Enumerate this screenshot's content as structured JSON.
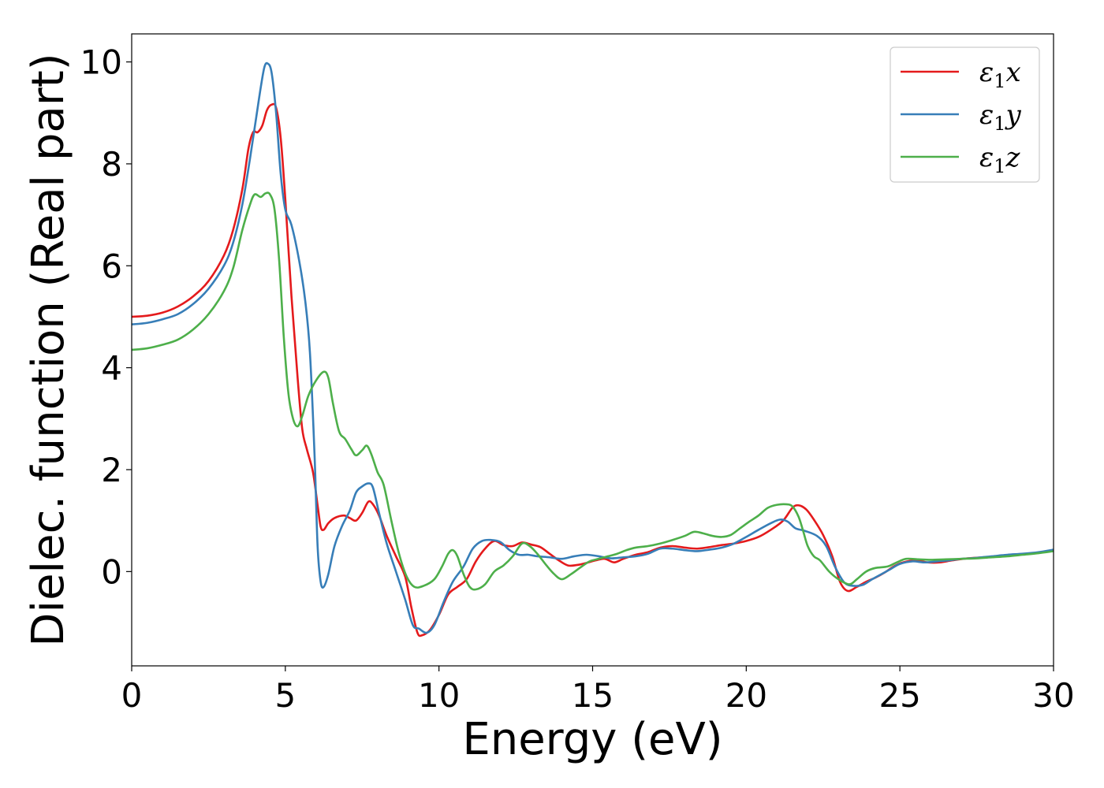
{
  "chart_data": {
    "type": "line",
    "xlabel": "Energy (eV)",
    "ylabel": "Dielec. function (Real part)",
    "xlim": [
      0,
      30
    ],
    "ylim": [
      -1.85,
      10.55
    ],
    "xticks": [
      0,
      5,
      10,
      15,
      20,
      25,
      30
    ],
    "yticks": [
      0,
      2,
      4,
      6,
      8,
      10
    ],
    "xtick_labels": [
      "0",
      "5",
      "10",
      "15",
      "20",
      "25",
      "30"
    ],
    "ytick_labels": [
      "0",
      "2",
      "4",
      "6",
      "8",
      "10"
    ],
    "grid": false,
    "legend_position": "top-right",
    "series": [
      {
        "name": "ε₁x",
        "legend_base": "ε",
        "legend_sub": "1",
        "legend_var": "x",
        "color": "#e41a1c",
        "points": [
          [
            0,
            5.0
          ],
          [
            0.5,
            5.02
          ],
          [
            1,
            5.08
          ],
          [
            1.5,
            5.2
          ],
          [
            2,
            5.4
          ],
          [
            2.5,
            5.7
          ],
          [
            3,
            6.2
          ],
          [
            3.3,
            6.7
          ],
          [
            3.6,
            7.5
          ],
          [
            3.8,
            8.3
          ],
          [
            3.95,
            8.62
          ],
          [
            4.1,
            8.62
          ],
          [
            4.25,
            8.75
          ],
          [
            4.4,
            9.05
          ],
          [
            4.55,
            9.16
          ],
          [
            4.7,
            9.1
          ],
          [
            4.85,
            8.5
          ],
          [
            5.0,
            7.3
          ],
          [
            5.2,
            5.4
          ],
          [
            5.4,
            3.8
          ],
          [
            5.55,
            2.8
          ],
          [
            5.7,
            2.4
          ],
          [
            5.9,
            1.95
          ],
          [
            6.05,
            1.3
          ],
          [
            6.15,
            0.88
          ],
          [
            6.25,
            0.82
          ],
          [
            6.4,
            0.95
          ],
          [
            6.6,
            1.05
          ],
          [
            6.9,
            1.1
          ],
          [
            7.1,
            1.05
          ],
          [
            7.3,
            1.0
          ],
          [
            7.5,
            1.15
          ],
          [
            7.7,
            1.37
          ],
          [
            7.85,
            1.32
          ],
          [
            8.05,
            1.1
          ],
          [
            8.3,
            0.7
          ],
          [
            8.6,
            0.3
          ],
          [
            8.9,
            -0.1
          ],
          [
            9.1,
            -0.7
          ],
          [
            9.3,
            -1.2
          ],
          [
            9.45,
            -1.25
          ],
          [
            9.7,
            -1.15
          ],
          [
            10.0,
            -0.85
          ],
          [
            10.3,
            -0.45
          ],
          [
            10.6,
            -0.3
          ],
          [
            10.9,
            -0.15
          ],
          [
            11.2,
            0.2
          ],
          [
            11.5,
            0.45
          ],
          [
            11.8,
            0.6
          ],
          [
            12.1,
            0.52
          ],
          [
            12.4,
            0.5
          ],
          [
            12.7,
            0.57
          ],
          [
            13.0,
            0.53
          ],
          [
            13.3,
            0.48
          ],
          [
            13.6,
            0.35
          ],
          [
            13.9,
            0.22
          ],
          [
            14.2,
            0.12
          ],
          [
            14.5,
            0.13
          ],
          [
            14.8,
            0.17
          ],
          [
            15.1,
            0.22
          ],
          [
            15.4,
            0.25
          ],
          [
            15.7,
            0.18
          ],
          [
            16.0,
            0.25
          ],
          [
            16.4,
            0.33
          ],
          [
            16.8,
            0.38
          ],
          [
            17.2,
            0.47
          ],
          [
            17.6,
            0.5
          ],
          [
            18.0,
            0.47
          ],
          [
            18.4,
            0.45
          ],
          [
            18.8,
            0.48
          ],
          [
            19.2,
            0.52
          ],
          [
            19.6,
            0.55
          ],
          [
            20.0,
            0.6
          ],
          [
            20.4,
            0.68
          ],
          [
            20.8,
            0.82
          ],
          [
            21.2,
            1.0
          ],
          [
            21.5,
            1.25
          ],
          [
            21.7,
            1.3
          ],
          [
            21.95,
            1.22
          ],
          [
            22.2,
            1.02
          ],
          [
            22.5,
            0.72
          ],
          [
            22.8,
            0.3
          ],
          [
            23.05,
            -0.2
          ],
          [
            23.3,
            -0.38
          ],
          [
            23.6,
            -0.3
          ],
          [
            23.9,
            -0.2
          ],
          [
            24.2,
            -0.12
          ],
          [
            24.5,
            -0.02
          ],
          [
            24.8,
            0.1
          ],
          [
            25.1,
            0.18
          ],
          [
            25.5,
            0.22
          ],
          [
            25.9,
            0.18
          ],
          [
            26.3,
            0.18
          ],
          [
            26.7,
            0.22
          ],
          [
            27.2,
            0.26
          ],
          [
            27.7,
            0.28
          ],
          [
            28.2,
            0.3
          ],
          [
            28.8,
            0.33
          ],
          [
            29.4,
            0.36
          ],
          [
            30.0,
            0.42
          ]
        ]
      },
      {
        "name": "ε₁y",
        "legend_base": "ε",
        "legend_sub": "1",
        "legend_var": "y",
        "color": "#377eb8",
        "points": [
          [
            0,
            4.85
          ],
          [
            0.5,
            4.88
          ],
          [
            1,
            4.95
          ],
          [
            1.5,
            5.05
          ],
          [
            2,
            5.25
          ],
          [
            2.5,
            5.55
          ],
          [
            3,
            6.0
          ],
          [
            3.3,
            6.45
          ],
          [
            3.6,
            7.2
          ],
          [
            3.85,
            8.1
          ],
          [
            4.05,
            8.9
          ],
          [
            4.2,
            9.5
          ],
          [
            4.32,
            9.9
          ],
          [
            4.42,
            9.97
          ],
          [
            4.55,
            9.8
          ],
          [
            4.7,
            9.0
          ],
          [
            4.85,
            7.8
          ],
          [
            5.0,
            7.1
          ],
          [
            5.2,
            6.8
          ],
          [
            5.45,
            6.1
          ],
          [
            5.65,
            5.3
          ],
          [
            5.8,
            4.3
          ],
          [
            5.95,
            2.3
          ],
          [
            6.05,
            0.5
          ],
          [
            6.15,
            -0.2
          ],
          [
            6.25,
            -0.3
          ],
          [
            6.4,
            -0.05
          ],
          [
            6.6,
            0.5
          ],
          [
            6.85,
            0.9
          ],
          [
            7.1,
            1.2
          ],
          [
            7.3,
            1.55
          ],
          [
            7.5,
            1.67
          ],
          [
            7.7,
            1.73
          ],
          [
            7.85,
            1.65
          ],
          [
            8.05,
            1.15
          ],
          [
            8.3,
            0.55
          ],
          [
            8.6,
            0.0
          ],
          [
            8.9,
            -0.55
          ],
          [
            9.15,
            -1.05
          ],
          [
            9.35,
            -1.12
          ],
          [
            9.6,
            -1.2
          ],
          [
            9.85,
            -1.05
          ],
          [
            10.15,
            -0.6
          ],
          [
            10.45,
            -0.2
          ],
          [
            10.8,
            0.1
          ],
          [
            11.1,
            0.45
          ],
          [
            11.4,
            0.6
          ],
          [
            11.7,
            0.62
          ],
          [
            12.0,
            0.58
          ],
          [
            12.3,
            0.42
          ],
          [
            12.6,
            0.33
          ],
          [
            12.9,
            0.33
          ],
          [
            13.2,
            0.3
          ],
          [
            13.6,
            0.28
          ],
          [
            14.0,
            0.25
          ],
          [
            14.4,
            0.3
          ],
          [
            14.8,
            0.33
          ],
          [
            15.2,
            0.3
          ],
          [
            15.6,
            0.26
          ],
          [
            16.0,
            0.28
          ],
          [
            16.4,
            0.3
          ],
          [
            16.8,
            0.35
          ],
          [
            17.2,
            0.45
          ],
          [
            17.6,
            0.45
          ],
          [
            18.0,
            0.42
          ],
          [
            18.4,
            0.4
          ],
          [
            18.8,
            0.43
          ],
          [
            19.2,
            0.47
          ],
          [
            19.6,
            0.55
          ],
          [
            20.0,
            0.68
          ],
          [
            20.4,
            0.82
          ],
          [
            20.8,
            0.95
          ],
          [
            21.1,
            1.02
          ],
          [
            21.35,
            0.98
          ],
          [
            21.6,
            0.85
          ],
          [
            21.9,
            0.8
          ],
          [
            22.3,
            0.7
          ],
          [
            22.6,
            0.5
          ],
          [
            22.9,
            0.08
          ],
          [
            23.2,
            -0.22
          ],
          [
            23.5,
            -0.28
          ],
          [
            23.8,
            -0.26
          ],
          [
            24.1,
            -0.15
          ],
          [
            24.4,
            -0.05
          ],
          [
            24.7,
            0.05
          ],
          [
            25.0,
            0.15
          ],
          [
            25.4,
            0.2
          ],
          [
            25.8,
            0.18
          ],
          [
            26.2,
            0.2
          ],
          [
            26.6,
            0.22
          ],
          [
            27.0,
            0.25
          ],
          [
            27.5,
            0.27
          ],
          [
            28.0,
            0.3
          ],
          [
            28.5,
            0.33
          ],
          [
            29.0,
            0.35
          ],
          [
            29.5,
            0.38
          ],
          [
            30.0,
            0.43
          ]
        ]
      },
      {
        "name": "ε₁z",
        "legend_base": "ε",
        "legend_sub": "1",
        "legend_var": "z",
        "color": "#4daf4a",
        "points": [
          [
            0,
            4.35
          ],
          [
            0.5,
            4.38
          ],
          [
            1,
            4.45
          ],
          [
            1.5,
            4.55
          ],
          [
            2,
            4.75
          ],
          [
            2.5,
            5.05
          ],
          [
            3,
            5.5
          ],
          [
            3.3,
            5.95
          ],
          [
            3.6,
            6.7
          ],
          [
            3.85,
            7.2
          ],
          [
            4.0,
            7.4
          ],
          [
            4.2,
            7.35
          ],
          [
            4.35,
            7.42
          ],
          [
            4.5,
            7.4
          ],
          [
            4.65,
            7.1
          ],
          [
            4.8,
            6.1
          ],
          [
            4.95,
            4.6
          ],
          [
            5.1,
            3.5
          ],
          [
            5.25,
            3.0
          ],
          [
            5.4,
            2.85
          ],
          [
            5.55,
            3.05
          ],
          [
            5.75,
            3.45
          ],
          [
            6.0,
            3.75
          ],
          [
            6.25,
            3.92
          ],
          [
            6.4,
            3.8
          ],
          [
            6.55,
            3.3
          ],
          [
            6.75,
            2.75
          ],
          [
            6.95,
            2.6
          ],
          [
            7.15,
            2.4
          ],
          [
            7.3,
            2.28
          ],
          [
            7.5,
            2.38
          ],
          [
            7.65,
            2.47
          ],
          [
            7.8,
            2.3
          ],
          [
            8.0,
            1.95
          ],
          [
            8.2,
            1.7
          ],
          [
            8.45,
            1.0
          ],
          [
            8.7,
            0.35
          ],
          [
            8.95,
            -0.1
          ],
          [
            9.2,
            -0.3
          ],
          [
            9.5,
            -0.28
          ],
          [
            9.85,
            -0.15
          ],
          [
            10.1,
            0.1
          ],
          [
            10.3,
            0.35
          ],
          [
            10.45,
            0.42
          ],
          [
            10.6,
            0.3
          ],
          [
            10.8,
            -0.05
          ],
          [
            11.0,
            -0.3
          ],
          [
            11.2,
            -0.35
          ],
          [
            11.5,
            -0.25
          ],
          [
            11.8,
            0.0
          ],
          [
            12.1,
            0.12
          ],
          [
            12.4,
            0.3
          ],
          [
            12.7,
            0.55
          ],
          [
            12.95,
            0.5
          ],
          [
            13.2,
            0.35
          ],
          [
            13.5,
            0.12
          ],
          [
            13.75,
            -0.05
          ],
          [
            14.0,
            -0.15
          ],
          [
            14.3,
            -0.05
          ],
          [
            14.6,
            0.08
          ],
          [
            14.9,
            0.2
          ],
          [
            15.2,
            0.25
          ],
          [
            15.5,
            0.3
          ],
          [
            15.8,
            0.35
          ],
          [
            16.1,
            0.42
          ],
          [
            16.4,
            0.47
          ],
          [
            16.8,
            0.5
          ],
          [
            17.2,
            0.55
          ],
          [
            17.6,
            0.62
          ],
          [
            18.0,
            0.7
          ],
          [
            18.3,
            0.78
          ],
          [
            18.6,
            0.75
          ],
          [
            18.9,
            0.7
          ],
          [
            19.2,
            0.68
          ],
          [
            19.5,
            0.72
          ],
          [
            19.8,
            0.85
          ],
          [
            20.1,
            0.98
          ],
          [
            20.4,
            1.1
          ],
          [
            20.7,
            1.25
          ],
          [
            21.0,
            1.31
          ],
          [
            21.3,
            1.32
          ],
          [
            21.5,
            1.28
          ],
          [
            21.7,
            1.08
          ],
          [
            21.85,
            0.8
          ],
          [
            22.0,
            0.5
          ],
          [
            22.2,
            0.3
          ],
          [
            22.4,
            0.22
          ],
          [
            22.7,
            0.0
          ],
          [
            23.0,
            -0.15
          ],
          [
            23.35,
            -0.25
          ],
          [
            23.6,
            -0.15
          ],
          [
            23.9,
            0.0
          ],
          [
            24.2,
            0.07
          ],
          [
            24.6,
            0.1
          ],
          [
            24.9,
            0.18
          ],
          [
            25.2,
            0.25
          ],
          [
            25.6,
            0.24
          ],
          [
            26.0,
            0.23
          ],
          [
            26.5,
            0.24
          ],
          [
            27.0,
            0.25
          ],
          [
            27.5,
            0.26
          ],
          [
            28.0,
            0.28
          ],
          [
            28.5,
            0.3
          ],
          [
            29.0,
            0.33
          ],
          [
            29.5,
            0.36
          ],
          [
            30.0,
            0.4
          ]
        ]
      }
    ]
  }
}
